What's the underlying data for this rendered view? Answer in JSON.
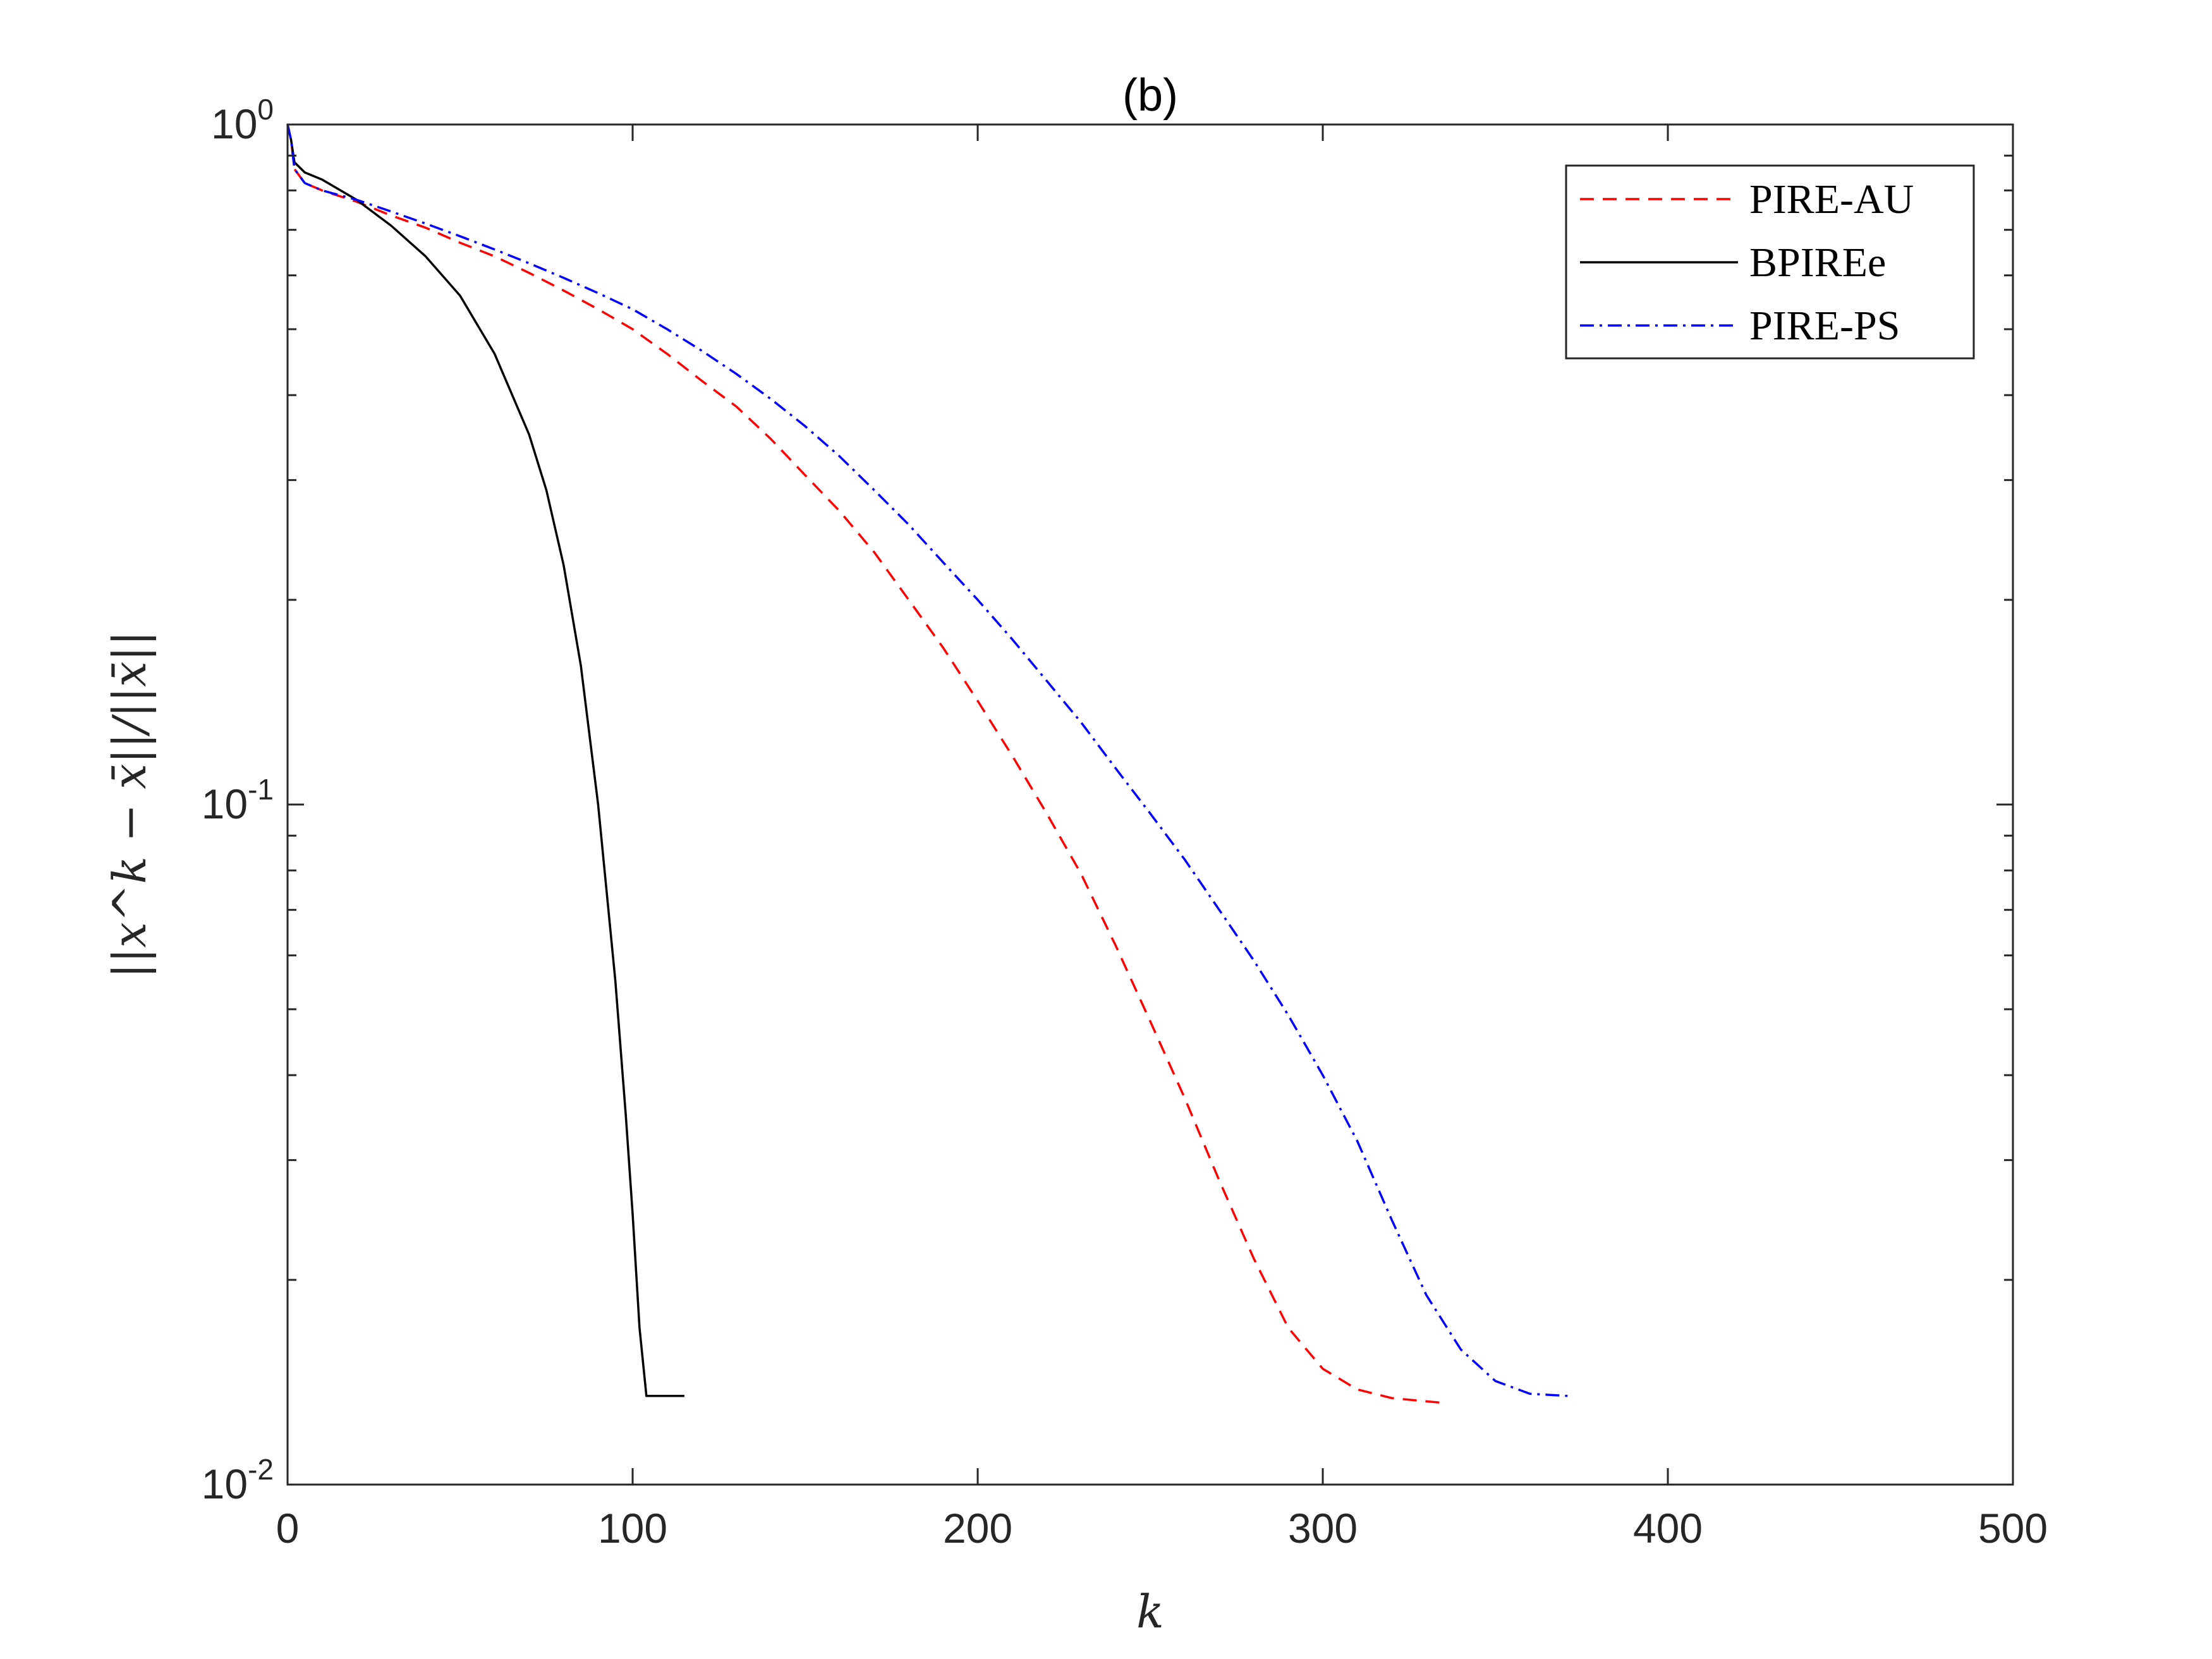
{
  "chart_data": {
    "type": "line",
    "title": "(b)",
    "xlabel": "k",
    "ylabel": "||x^k − x̄||/||x̄||",
    "xlim": [
      0,
      500
    ],
    "ylim": [
      0.01,
      1
    ],
    "y_scale": "log",
    "x_ticks": [
      0,
      100,
      200,
      300,
      400,
      500
    ],
    "x_tick_labels": [
      "0",
      "100",
      "200",
      "300",
      "400",
      "500"
    ],
    "y_ticks": [
      {
        "value": 1,
        "base": "10",
        "exp": "0"
      },
      {
        "value": 0.1,
        "base": "10",
        "exp": "-1"
      },
      {
        "value": 0.01,
        "base": "10",
        "exp": "-2"
      }
    ],
    "grid": false,
    "legend_position": "top-right",
    "series": [
      {
        "name": "PIRE-AU",
        "color": "#ff0000",
        "style": "dashed",
        "x": [
          0,
          1,
          2,
          5,
          10,
          20,
          30,
          40,
          50,
          60,
          70,
          80,
          90,
          100,
          110,
          120,
          130,
          140,
          150,
          160,
          170,
          180,
          190,
          200,
          210,
          220,
          230,
          240,
          250,
          260,
          270,
          280,
          290,
          300,
          310,
          320,
          334
        ],
        "y": [
          1.0,
          0.95,
          0.86,
          0.82,
          0.8,
          0.77,
          0.735,
          0.705,
          0.67,
          0.64,
          0.605,
          0.57,
          0.535,
          0.5,
          0.46,
          0.42,
          0.385,
          0.345,
          0.305,
          0.27,
          0.235,
          0.2,
          0.17,
          0.142,
          0.118,
          0.097,
          0.079,
          0.062,
          0.048,
          0.037,
          0.028,
          0.0215,
          0.017,
          0.0148,
          0.0138,
          0.0134,
          0.0132
        ]
      },
      {
        "name": "BPIREe",
        "color": "#000000",
        "style": "solid",
        "x": [
          0,
          1,
          2,
          5,
          10,
          20,
          30,
          40,
          50,
          60,
          70,
          75,
          80,
          85,
          90,
          95,
          98,
          100,
          102,
          104,
          110,
          115
        ],
        "y": [
          1.0,
          0.95,
          0.88,
          0.85,
          0.83,
          0.775,
          0.71,
          0.64,
          0.56,
          0.46,
          0.35,
          0.29,
          0.225,
          0.16,
          0.1,
          0.055,
          0.035,
          0.025,
          0.017,
          0.0135,
          0.0135,
          0.0135
        ]
      },
      {
        "name": "PIRE-PS",
        "color": "#0000ff",
        "style": "dash-dot",
        "x": [
          0,
          1,
          2,
          5,
          10,
          20,
          30,
          40,
          50,
          60,
          70,
          80,
          90,
          100,
          110,
          120,
          130,
          140,
          150,
          160,
          170,
          180,
          190,
          200,
          210,
          220,
          230,
          240,
          250,
          260,
          270,
          280,
          290,
          300,
          310,
          320,
          330,
          340,
          350,
          360,
          371
        ],
        "y": [
          1.0,
          0.95,
          0.86,
          0.82,
          0.8,
          0.775,
          0.745,
          0.715,
          0.685,
          0.655,
          0.625,
          0.595,
          0.565,
          0.535,
          0.5,
          0.465,
          0.43,
          0.395,
          0.36,
          0.325,
          0.29,
          0.258,
          0.227,
          0.2,
          0.175,
          0.152,
          0.132,
          0.113,
          0.097,
          0.083,
          0.07,
          0.059,
          0.049,
          0.04,
          0.032,
          0.0245,
          0.019,
          0.0158,
          0.0142,
          0.0136,
          0.0135
        ]
      }
    ]
  }
}
